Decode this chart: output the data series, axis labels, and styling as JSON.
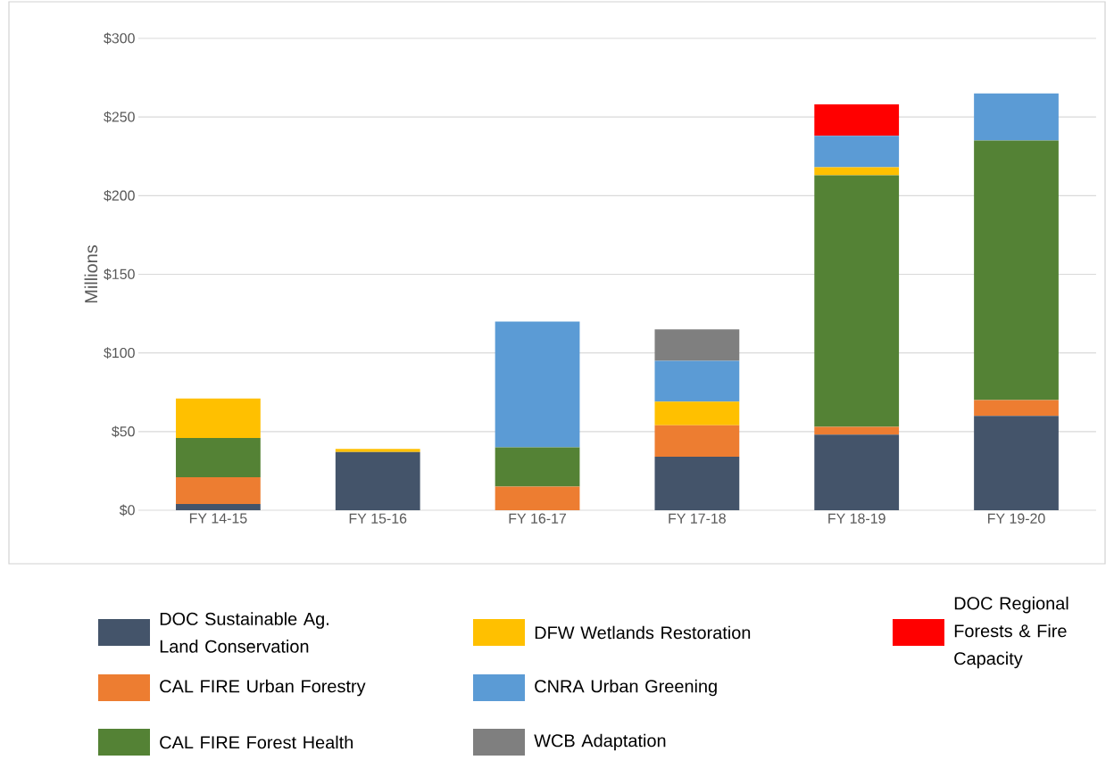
{
  "chart_data": {
    "type": "bar",
    "stacked": true,
    "ylabel": "Millions",
    "categories": [
      "FY 14-15",
      "FY 15-16",
      "FY 16-17",
      "FY 17-18",
      "FY 18-19",
      "FY 19-20"
    ],
    "series": [
      {
        "name": "DOC Sustainable Ag. Land Conservation",
        "color": "#44546a",
        "values": [
          4,
          37,
          null,
          34,
          48,
          60
        ]
      },
      {
        "name": "CAL FIRE Urban Forestry",
        "color": "#ed7d31",
        "values": [
          17,
          null,
          15,
          20,
          5,
          10
        ]
      },
      {
        "name": "CAL FIRE Forest Health",
        "color": "#548235",
        "values": [
          25,
          null,
          25,
          null,
          160,
          165
        ]
      },
      {
        "name": "DFW Wetlands Restoration",
        "color": "#ffc000",
        "values": [
          25,
          2,
          null,
          15,
          5,
          null
        ]
      },
      {
        "name": "CNRA Urban Greening",
        "color": "#5b9bd5",
        "values": [
          null,
          null,
          80,
          26,
          20,
          30
        ]
      },
      {
        "name": "WCB Adaptation",
        "color": "#7f7f7f",
        "values": [
          null,
          null,
          null,
          20,
          null,
          null
        ]
      },
      {
        "name": "DOC Regional Forests & Fire Capacity",
        "color": "#ff0000",
        "values": [
          null,
          null,
          null,
          null,
          20,
          null
        ]
      }
    ],
    "ylim": [
      0,
      300
    ],
    "yticks": [
      {
        "value": 0,
        "label": "$0"
      },
      {
        "value": 50,
        "label": "$50"
      },
      {
        "value": 100,
        "label": "$100"
      },
      {
        "value": 150,
        "label": "$150"
      },
      {
        "value": 200,
        "label": "$200"
      },
      {
        "value": 250,
        "label": "$250"
      },
      {
        "value": 300,
        "label": "$300"
      }
    ],
    "grid": "y",
    "legend": "bottom"
  }
}
